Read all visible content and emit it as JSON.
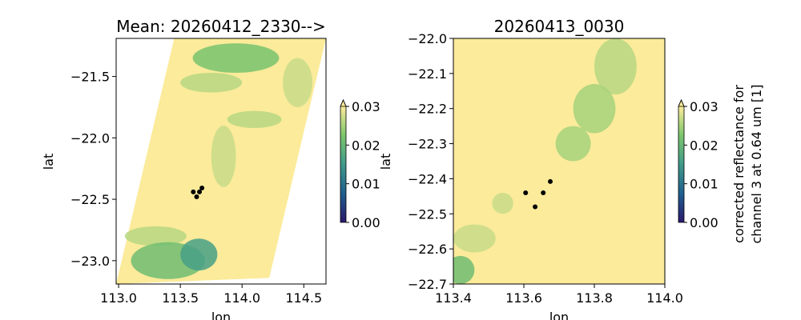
{
  "chart_data": [
    {
      "type": "heatmap",
      "title": "Mean: 20260412_2330-->",
      "xlabel": "lon",
      "ylabel": "lat",
      "xlim": [
        112.98,
        114.68
      ],
      "ylim": [
        -23.19,
        -21.19
      ],
      "xticks": [
        113.0,
        113.5,
        114.0,
        114.5
      ],
      "xtick_labels": [
        "113.0",
        "113.5",
        "114.0",
        "114.5"
      ],
      "yticks": [
        -21.5,
        -22.0,
        -22.5,
        -23.0
      ],
      "ytick_labels": [
        "−21.5",
        "−22.0",
        "−22.5",
        "−23.0"
      ],
      "swath_corners": [
        [
          113.45,
          -21.19
        ],
        [
          114.68,
          -21.19
        ],
        [
          114.22,
          -23.14
        ],
        [
          112.98,
          -23.19
        ]
      ],
      "background_value": 0.03,
      "cloud_regions": [
        {
          "lon": 113.95,
          "lat": -21.35,
          "rlon": 0.35,
          "rlat": 0.12,
          "value": 0.022
        },
        {
          "lon": 113.75,
          "lat": -21.55,
          "rlon": 0.25,
          "rlat": 0.08,
          "value": 0.026
        },
        {
          "lon": 114.45,
          "lat": -21.55,
          "rlon": 0.12,
          "rlat": 0.2,
          "value": 0.027
        },
        {
          "lon": 114.1,
          "lat": -21.85,
          "rlon": 0.22,
          "rlat": 0.07,
          "value": 0.026
        },
        {
          "lon": 113.85,
          "lat": -22.15,
          "rlon": 0.1,
          "rlat": 0.25,
          "value": 0.027
        },
        {
          "lon": 113.3,
          "lat": -22.8,
          "rlon": 0.25,
          "rlat": 0.08,
          "value": 0.026
        },
        {
          "lon": 113.4,
          "lat": -23.0,
          "rlon": 0.3,
          "rlat": 0.15,
          "value": 0.021
        },
        {
          "lon": 113.65,
          "lat": -22.95,
          "rlon": 0.15,
          "rlat": 0.13,
          "value": 0.016
        }
      ],
      "points": [
        [
          113.605,
          -22.44
        ],
        [
          113.655,
          -22.44
        ],
        [
          113.675,
          -22.408
        ],
        [
          113.632,
          -22.48
        ]
      ],
      "colorbar": {
        "vmin": 0.0,
        "vmax": 0.03,
        "extend": "max",
        "ticks": [
          "0.00",
          "0.01",
          "0.02",
          "0.03"
        ],
        "label": ""
      }
    },
    {
      "type": "heatmap",
      "title": "20260413_0030",
      "xlabel": "lon",
      "ylabel": "lat",
      "xlim": [
        113.4,
        114.0
      ],
      "ylim": [
        -22.7,
        -22.0
      ],
      "xticks": [
        113.4,
        113.6,
        113.8,
        114.0
      ],
      "xtick_labels": [
        "113.4",
        "113.6",
        "113.8",
        "114.0"
      ],
      "yticks": [
        -22.0,
        -22.1,
        -22.2,
        -22.3,
        -22.4,
        -22.5,
        -22.6,
        -22.7
      ],
      "ytick_labels": [
        "−22.0",
        "−22.1",
        "−22.2",
        "−22.3",
        "−22.4",
        "−22.5",
        "−22.6",
        "−22.7"
      ],
      "background_value": 0.03,
      "cloud_regions": [
        {
          "lon": 113.86,
          "lat": -22.08,
          "rlon": 0.06,
          "rlat": 0.08,
          "value": 0.026
        },
        {
          "lon": 113.8,
          "lat": -22.2,
          "rlon": 0.06,
          "rlat": 0.07,
          "value": 0.025
        },
        {
          "lon": 113.74,
          "lat": -22.3,
          "rlon": 0.05,
          "rlat": 0.05,
          "value": 0.025
        },
        {
          "lon": 113.54,
          "lat": -22.47,
          "rlon": 0.03,
          "rlat": 0.03,
          "value": 0.027
        },
        {
          "lon": 113.46,
          "lat": -22.57,
          "rlon": 0.06,
          "rlat": 0.04,
          "value": 0.027
        },
        {
          "lon": 113.42,
          "lat": -22.66,
          "rlon": 0.04,
          "rlat": 0.04,
          "value": 0.021
        }
      ],
      "points": [
        [
          113.605,
          -22.44
        ],
        [
          113.655,
          -22.44
        ],
        [
          113.675,
          -22.408
        ],
        [
          113.632,
          -22.48
        ]
      ],
      "colorbar": {
        "vmin": 0.0,
        "vmax": 0.03,
        "extend": "max",
        "ticks": [
          "0.00",
          "0.01",
          "0.02",
          "0.03"
        ],
        "label": "corrected reflectance for channel 3 at 0.64 um [1]",
        "label_lines": [
          "corrected reflectance for",
          "channel 3 at 0.64 um [1]"
        ]
      }
    }
  ],
  "colors": {
    "cmap": [
      "#2a186c",
      "#1f5f8e",
      "#3f9a8a",
      "#7cc66c",
      "#fbeb9a"
    ],
    "points": "#000000"
  }
}
